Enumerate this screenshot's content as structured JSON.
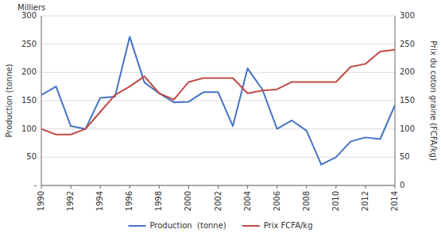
{
  "chart_data": {
    "type": "line",
    "x": [
      1990,
      1991,
      1992,
      1993,
      1994,
      1995,
      1996,
      1997,
      1998,
      1999,
      2000,
      2001,
      2002,
      2003,
      2004,
      2005,
      2006,
      2007,
      2008,
      2009,
      2010,
      2011,
      2012,
      2013,
      2014
    ],
    "series": [
      {
        "name": "Production  (tonne)",
        "color": "#4472C4",
        "values": [
          160,
          175,
          105,
          100,
          155,
          157,
          263,
          182,
          163,
          147,
          148,
          165,
          165,
          105,
          207,
          170,
          100,
          115,
          97,
          37,
          50,
          78,
          85,
          82,
          142
        ]
      },
      {
        "name": "Prix FCFA/kg",
        "color": "#BE4B48",
        "axis": "y2",
        "values": [
          100,
          90,
          90,
          100,
          130,
          160,
          175,
          193,
          163,
          152,
          183,
          190,
          190,
          190,
          163,
          168,
          170,
          183,
          183,
          183,
          183,
          210,
          215,
          237,
          240
        ]
      }
    ],
    "xlim": [
      1990,
      2014
    ],
    "xticks": [
      1990,
      1992,
      1994,
      1996,
      1998,
      2000,
      2002,
      2004,
      2006,
      2008,
      2010,
      2012,
      2014
    ],
    "ylim": [
      0,
      300
    ],
    "yticks": [
      {
        "value": 0,
        "label": "-"
      },
      50,
      100,
      150,
      200,
      250,
      300
    ],
    "y2lim": [
      0,
      300
    ],
    "y2ticks": [
      0,
      50,
      100,
      150,
      200,
      250,
      300
    ],
    "y_label": "Production (tonne)",
    "y2_label": "Prix du coton graine (FCFA/kg)",
    "annotations": [
      "Milliers"
    ],
    "grid": true,
    "legend": "bottom"
  }
}
